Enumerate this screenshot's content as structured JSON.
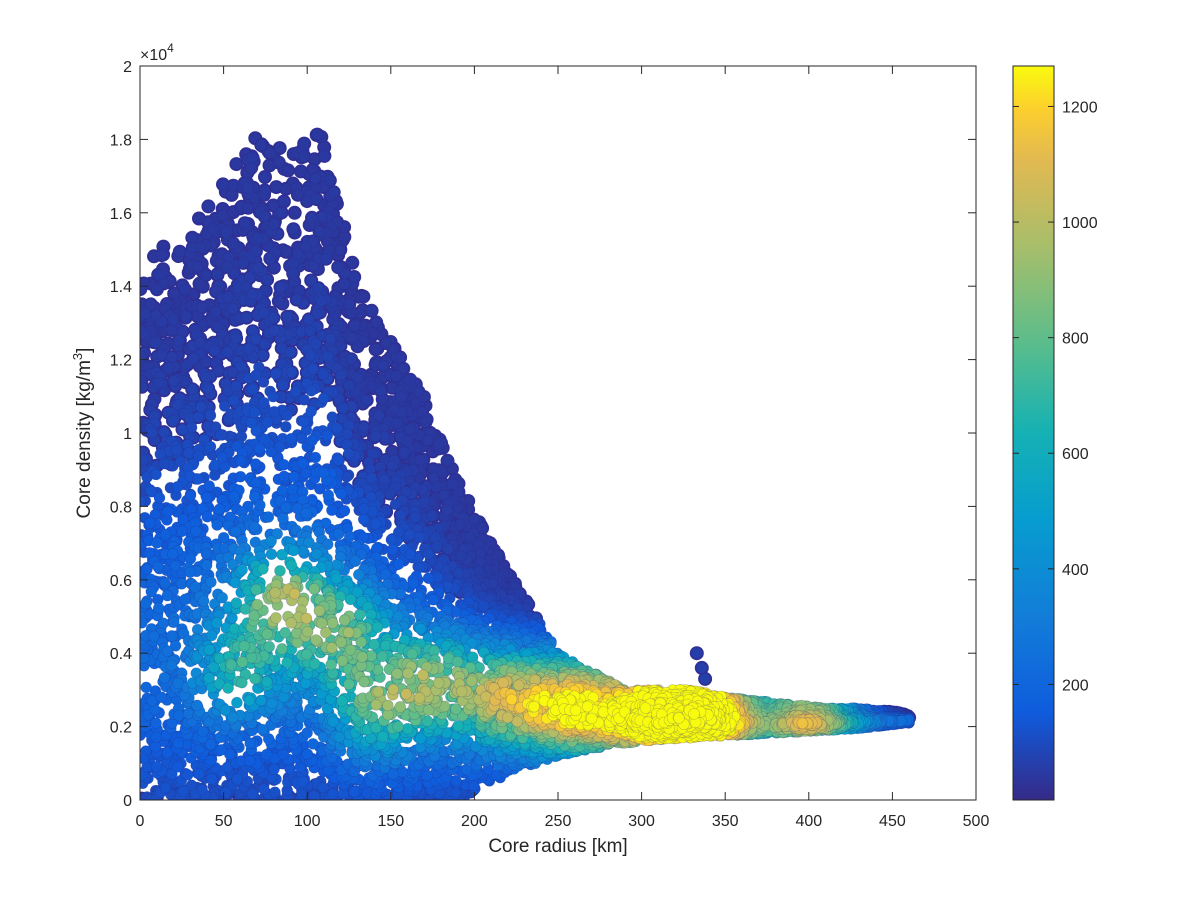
{
  "chart_data": {
    "type": "scatter",
    "title": "",
    "xlabel": "Core radius [km]",
    "ylabel_main": "Core density [kg/m",
    "ylabel_sup": "3",
    "ylabel_end": "]",
    "xlim": [
      0,
      500
    ],
    "ylim": [
      0,
      20000
    ],
    "x_ticks": [
      0,
      50,
      100,
      150,
      200,
      250,
      300,
      350,
      400,
      450,
      500
    ],
    "y_ticks": [
      0,
      0.2,
      0.4,
      0.6,
      0.8,
      1,
      1.2,
      1.4,
      1.6,
      1.8,
      2
    ],
    "x_tick_labels": [
      "0",
      "50",
      "100",
      "150",
      "200",
      "250",
      "300",
      "350",
      "400",
      "450",
      "500"
    ],
    "y_tick_labels": [
      "0",
      "0.2",
      "0.4",
      "0.6",
      "0.8",
      "1",
      "1.2",
      "1.4",
      "1.6",
      "1.8",
      "2"
    ],
    "y_multiplier_base": "×10",
    "y_multiplier_exp": "4",
    "grid": false,
    "colormap": "parula",
    "colorbar": {
      "location": "right",
      "range": [
        0,
        1270
      ],
      "ticks": [
        200,
        400,
        600,
        800,
        1000,
        1200
      ],
      "tick_labels": [
        "200",
        "400",
        "600",
        "800",
        "1000",
        "1200"
      ]
    },
    "density_envelope": {
      "x": [
        0,
        10,
        30,
        50,
        70,
        90,
        110,
        130,
        150,
        170,
        190,
        210,
        230,
        250,
        270,
        290,
        310,
        330,
        350,
        370,
        390,
        410,
        430,
        450,
        460
      ],
      "y_upper": [
        14000,
        15000,
        15500,
        16800,
        18200,
        17600,
        18300,
        14000,
        12500,
        11000,
        8800,
        7000,
        5500,
        4000,
        3500,
        3000,
        3000,
        3000,
        2800,
        2700,
        2600,
        2500,
        2500,
        2400,
        2300
      ],
      "y_lower": [
        0,
        0,
        0,
        0,
        0,
        0,
        0,
        0,
        0,
        0,
        0,
        500,
        900,
        1200,
        1400,
        1550,
        1650,
        1700,
        1750,
        1800,
        1850,
        1900,
        1950,
        2050,
        2100
      ]
    },
    "hotspots": [
      {
        "x": 340,
        "y": 2350,
        "count": 1250
      },
      {
        "x": 303,
        "y": 2400,
        "count": 1050
      },
      {
        "x": 260,
        "y": 2600,
        "count": 900
      },
      {
        "x": 85,
        "y": 5500,
        "count": 650
      },
      {
        "x": 120,
        "y": 4500,
        "count": 550
      },
      {
        "x": 175,
        "y": 3200,
        "count": 600
      },
      {
        "x": 220,
        "y": 2800,
        "count": 700
      },
      {
        "x": 400,
        "y": 2250,
        "count": 800
      },
      {
        "x": 60,
        "y": 3500,
        "count": 450
      },
      {
        "x": 140,
        "y": 2500,
        "count": 500
      }
    ],
    "outlier_points": [
      {
        "x": 333,
        "y": 4000
      },
      {
        "x": 336,
        "y": 3600
      },
      {
        "x": 338,
        "y": 3300
      }
    ]
  }
}
